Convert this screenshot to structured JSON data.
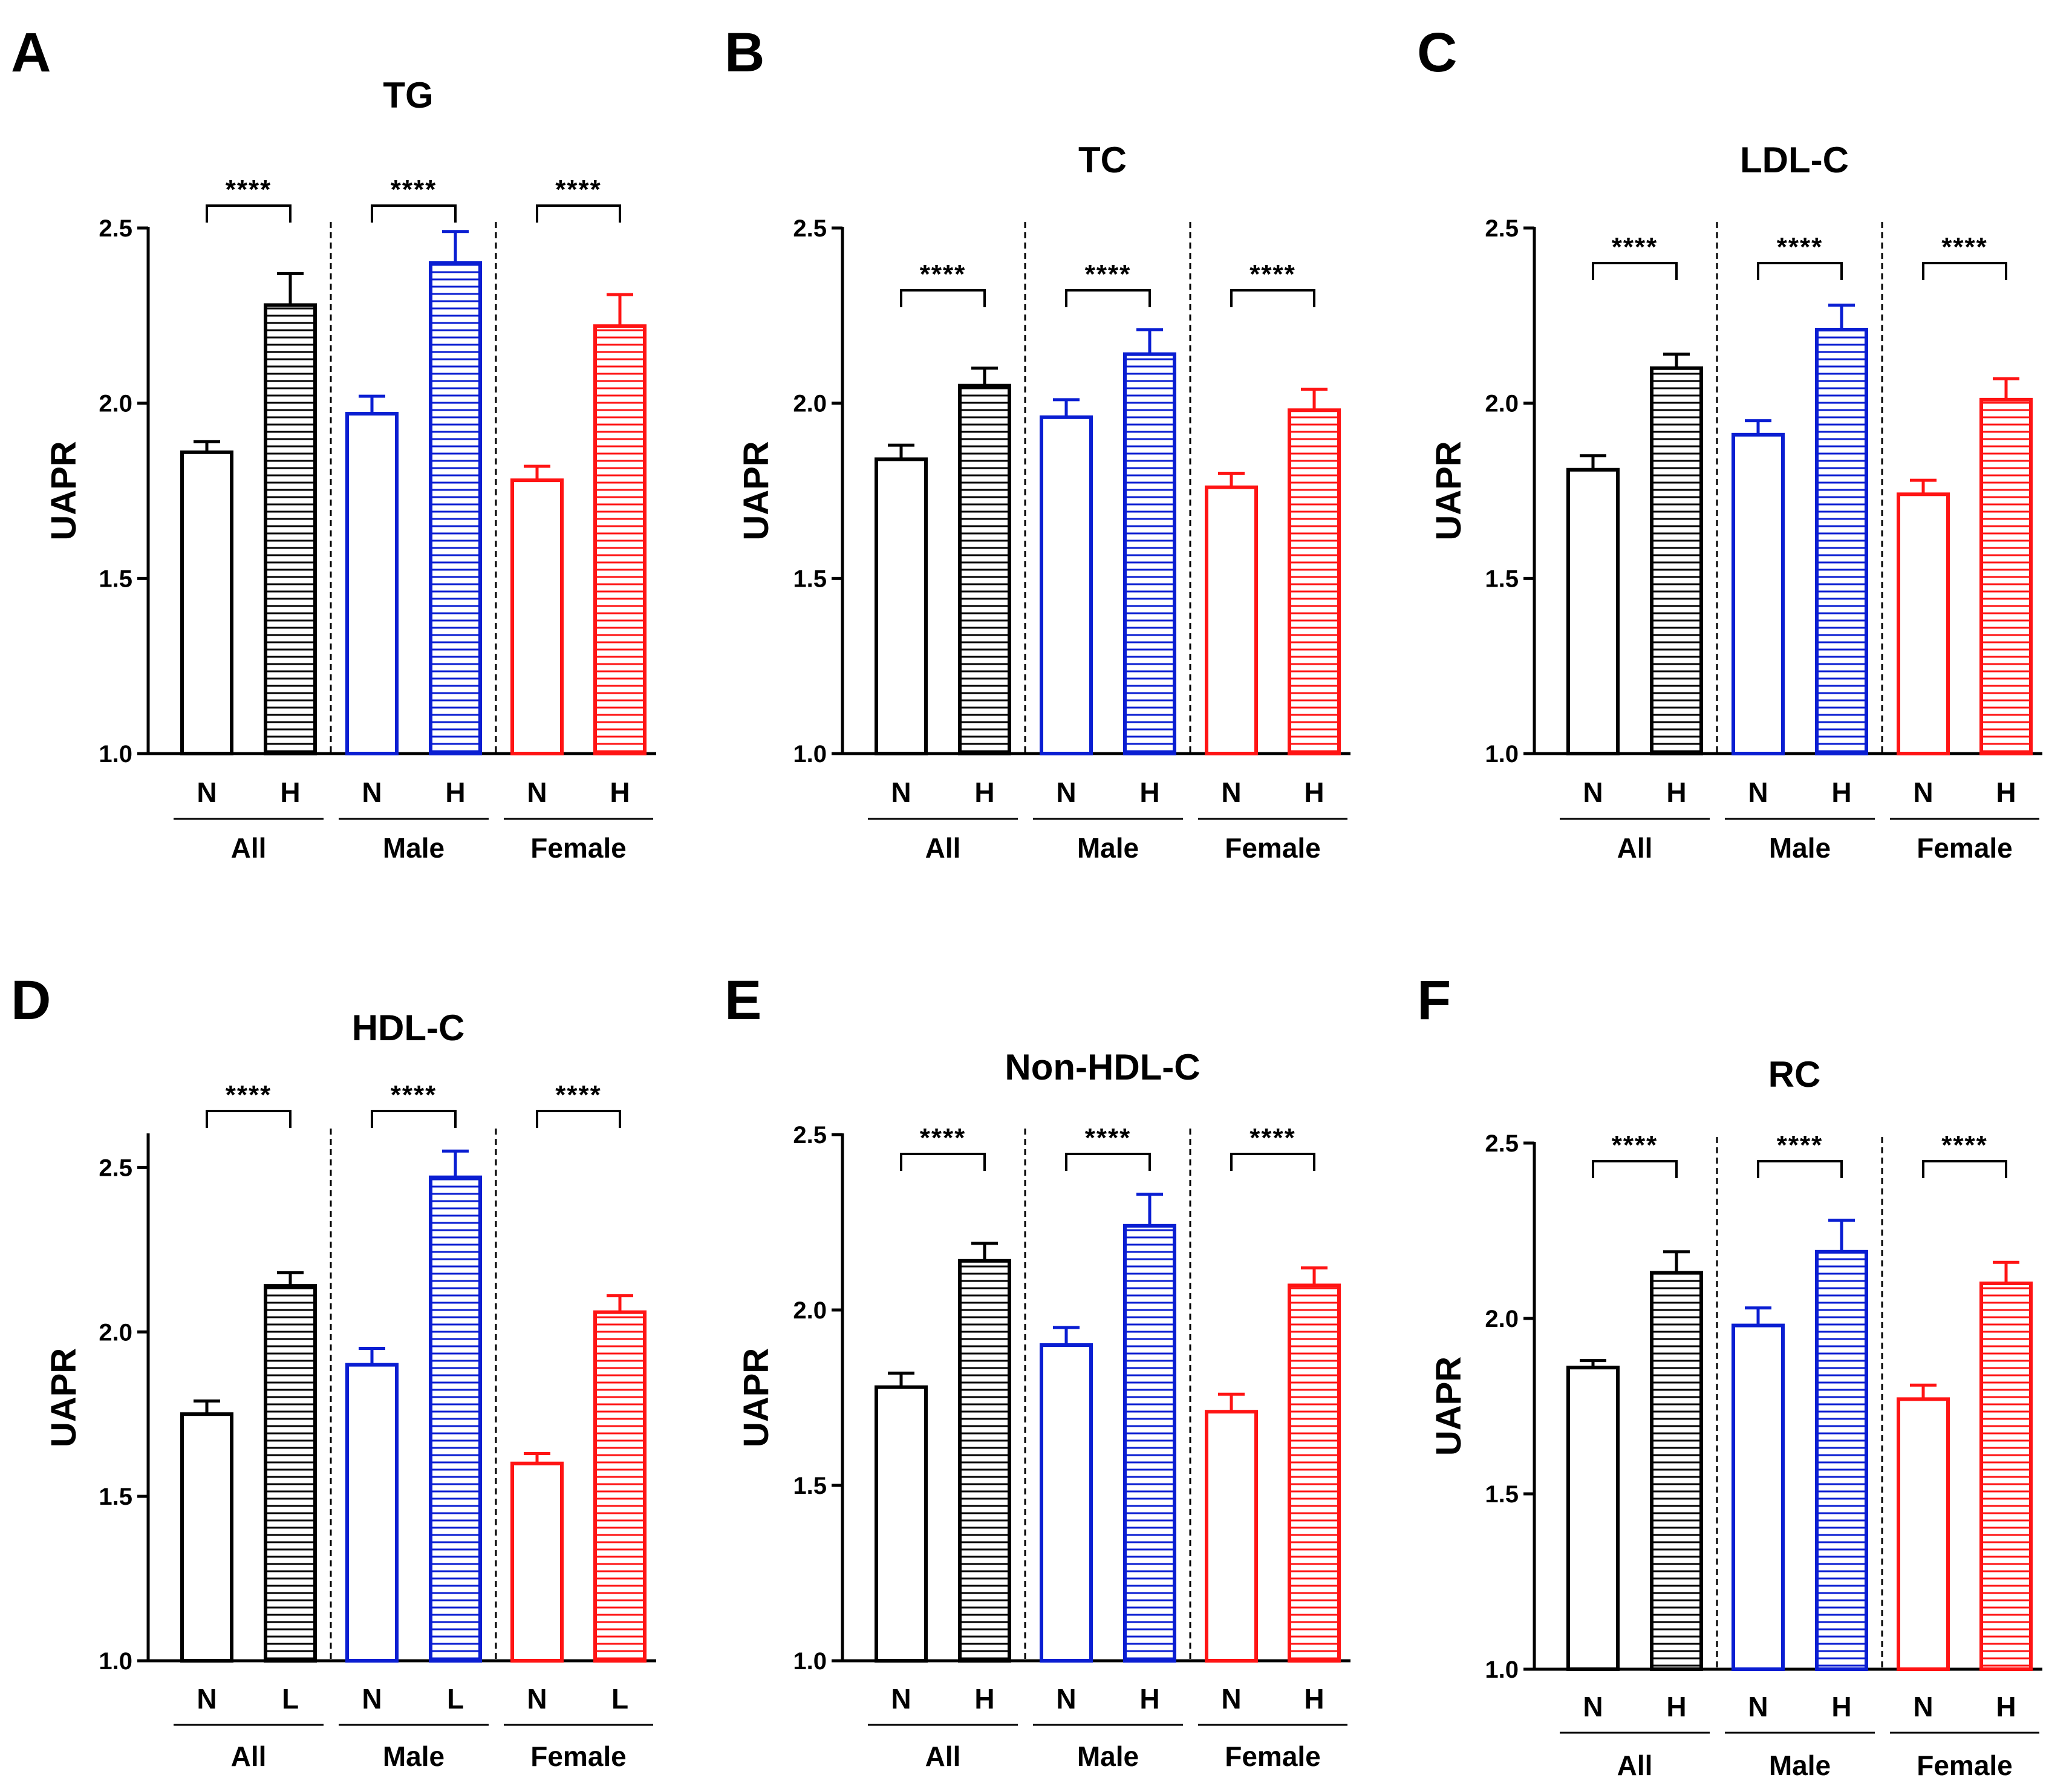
{
  "chart_data": [
    {
      "panel": "A",
      "type": "bar",
      "title": "TG",
      "ylabel": "UAPR",
      "xlabel": "",
      "ylim": [
        1.0,
        2.5
      ],
      "yticks": [
        "1.0",
        "1.5",
        "2.0",
        "2.5"
      ],
      "groups": [
        "All",
        "Male",
        "Female"
      ],
      "categories": [
        "N",
        "H"
      ],
      "series": [
        {
          "name": "All",
          "color": "#000000",
          "values": [
            1.86,
            2.28
          ],
          "errors": [
            0.03,
            0.09
          ]
        },
        {
          "name": "Male",
          "color": "#0a1ed2",
          "values": [
            1.97,
            2.4
          ],
          "errors": [
            0.05,
            0.09
          ]
        },
        {
          "name": "Female",
          "color": "#ff1414",
          "values": [
            1.78,
            2.22
          ],
          "errors": [
            0.04,
            0.09
          ]
        }
      ],
      "significance": [
        "****",
        "****",
        "****"
      ]
    },
    {
      "panel": "B",
      "type": "bar",
      "title": "TC",
      "ylabel": "UAPR",
      "xlabel": "",
      "ylim": [
        1.0,
        2.5
      ],
      "yticks": [
        "1.0",
        "1.5",
        "2.0",
        "2.5"
      ],
      "groups": [
        "All",
        "Male",
        "Female"
      ],
      "categories": [
        "N",
        "H"
      ],
      "series": [
        {
          "name": "All",
          "color": "#000000",
          "values": [
            1.84,
            2.05
          ],
          "errors": [
            0.04,
            0.05
          ]
        },
        {
          "name": "Male",
          "color": "#0a1ed2",
          "values": [
            1.96,
            2.14
          ],
          "errors": [
            0.05,
            0.07
          ]
        },
        {
          "name": "Female",
          "color": "#ff1414",
          "values": [
            1.76,
            1.98
          ],
          "errors": [
            0.04,
            0.06
          ]
        }
      ],
      "significance": [
        "****",
        "****",
        "****"
      ]
    },
    {
      "panel": "C",
      "type": "bar",
      "title": "LDL-C",
      "ylabel": "UAPR",
      "xlabel": "",
      "ylim": [
        1.0,
        2.5
      ],
      "yticks": [
        "1.0",
        "1.5",
        "2.0",
        "2.5"
      ],
      "groups": [
        "All",
        "Male",
        "Female"
      ],
      "categories": [
        "N",
        "H"
      ],
      "series": [
        {
          "name": "All",
          "color": "#000000",
          "values": [
            1.81,
            2.1
          ],
          "errors": [
            0.04,
            0.04
          ]
        },
        {
          "name": "Male",
          "color": "#0a1ed2",
          "values": [
            1.91,
            2.21
          ],
          "errors": [
            0.04,
            0.07
          ]
        },
        {
          "name": "Female",
          "color": "#ff1414",
          "values": [
            1.74,
            2.01
          ],
          "errors": [
            0.04,
            0.06
          ]
        }
      ],
      "significance": [
        "****",
        "****",
        "****"
      ]
    },
    {
      "panel": "D",
      "type": "bar",
      "title": "HDL-C",
      "ylabel": "UAPR",
      "xlabel": "",
      "ylim": [
        1.0,
        2.6
      ],
      "yticks": [
        "1.0",
        "1.5",
        "2.0",
        "2.5"
      ],
      "groups": [
        "All",
        "Male",
        "Female"
      ],
      "categories": [
        "N",
        "L"
      ],
      "series": [
        {
          "name": "All",
          "color": "#000000",
          "values": [
            1.75,
            2.14
          ],
          "errors": [
            0.04,
            0.04
          ]
        },
        {
          "name": "Male",
          "color": "#0a1ed2",
          "values": [
            1.9,
            2.47
          ],
          "errors": [
            0.05,
            0.08
          ]
        },
        {
          "name": "Female",
          "color": "#ff1414",
          "values": [
            1.6,
            2.06
          ],
          "errors": [
            0.03,
            0.05
          ]
        }
      ],
      "significance": [
        "****",
        "****",
        "****"
      ]
    },
    {
      "panel": "E",
      "type": "bar",
      "title": "Non-HDL-C",
      "ylabel": "UAPR",
      "xlabel": "",
      "ylim": [
        1.0,
        2.5
      ],
      "yticks": [
        "1.0",
        "1.5",
        "2.0",
        "2.5"
      ],
      "groups": [
        "All",
        "Male",
        "Female"
      ],
      "categories": [
        "N",
        "H"
      ],
      "series": [
        {
          "name": "All",
          "color": "#000000",
          "values": [
            1.78,
            2.14
          ],
          "errors": [
            0.04,
            0.05
          ]
        },
        {
          "name": "Male",
          "color": "#0a1ed2",
          "values": [
            1.9,
            2.24
          ],
          "errors": [
            0.05,
            0.09
          ]
        },
        {
          "name": "Female",
          "color": "#ff1414",
          "values": [
            1.71,
            2.07
          ],
          "errors": [
            0.05,
            0.05
          ]
        }
      ],
      "significance": [
        "****",
        "****",
        "****"
      ]
    },
    {
      "panel": "F",
      "type": "bar",
      "title": "RC",
      "ylabel": "UAPR",
      "xlabel": "",
      "ylim": [
        1.0,
        2.5
      ],
      "yticks": [
        "1.0",
        "1.5",
        "2.0",
        "2.5"
      ],
      "groups": [
        "All",
        "Male",
        "Female"
      ],
      "categories": [
        "N",
        "H"
      ],
      "series": [
        {
          "name": "All",
          "color": "#000000",
          "values": [
            1.86,
            2.13
          ],
          "errors": [
            0.02,
            0.06
          ]
        },
        {
          "name": "Male",
          "color": "#0a1ed2",
          "values": [
            1.98,
            2.19
          ],
          "errors": [
            0.05,
            0.09
          ]
        },
        {
          "name": "Female",
          "color": "#ff1414",
          "values": [
            1.77,
            2.1
          ],
          "errors": [
            0.04,
            0.06
          ]
        }
      ],
      "significance": [
        "****",
        "****",
        "****"
      ]
    }
  ]
}
